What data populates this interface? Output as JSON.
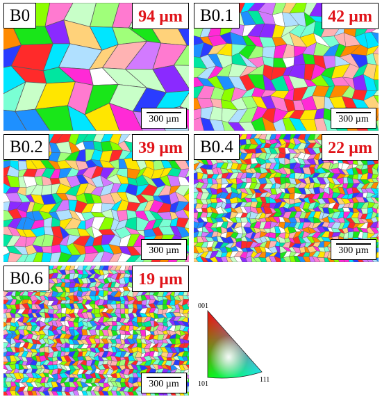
{
  "panels": [
    {
      "id": "p0",
      "label": "B0",
      "grain_size": "94 µm",
      "scale": "300 µm",
      "grains_x": 8,
      "grains_y": 6
    },
    {
      "id": "p1",
      "label": "B0.1",
      "grain_size": "42 µm",
      "scale": "300 µm",
      "grains_x": 18,
      "grains_y": 12
    },
    {
      "id": "p2",
      "label": "B0.2",
      "grain_size": "39 µm",
      "scale": "300 µm",
      "grains_x": 22,
      "grains_y": 15
    },
    {
      "id": "p3",
      "label": "B0.4",
      "grain_size": "22 µm",
      "scale": "300 µm",
      "grains_x": 38,
      "grains_y": 26
    },
    {
      "id": "p4",
      "label": "B0.6",
      "grain_size": "19 µm",
      "scale": "300 µm",
      "grains_x": 44,
      "grains_y": 30
    }
  ],
  "legend": {
    "top_label": "001",
    "left_label": "101",
    "right_label": "111"
  },
  "colors": {
    "label_size_text": "#e0141a",
    "palette": [
      "#ff2a2a",
      "#ff8a00",
      "#ffe600",
      "#8cff00",
      "#19e619",
      "#00e6a0",
      "#00e6ff",
      "#1e90ff",
      "#2a3cff",
      "#8a2aff",
      "#ff2ad6",
      "#ff7ad0",
      "#ffffff",
      "#c8ffc8",
      "#b0e0ff",
      "#ffb3b3",
      "#ffd27a",
      "#a0ff7a",
      "#7affd4",
      "#d27aff"
    ]
  }
}
